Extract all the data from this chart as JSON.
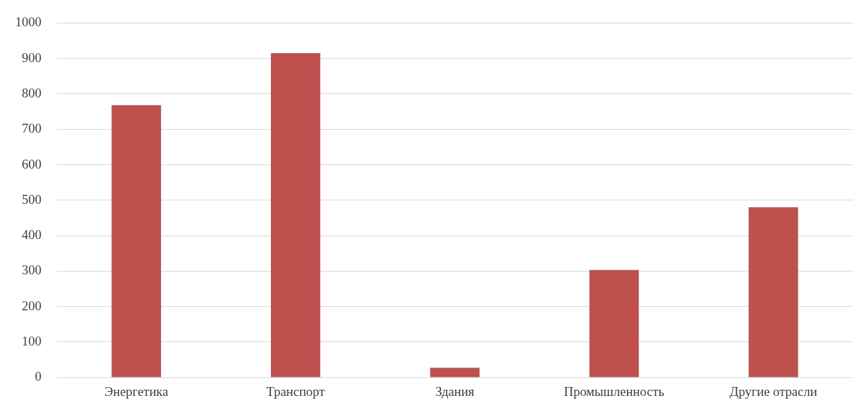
{
  "chart_data": {
    "type": "bar",
    "categories": [
      "Энергетика",
      "Транспорт",
      "Здания",
      "Промышленность",
      "Другие отрасли"
    ],
    "values": [
      768,
      915,
      27,
      303,
      480
    ],
    "color": "#c0504d",
    "ylim": [
      0,
      1000
    ],
    "yticks": [
      0,
      100,
      200,
      300,
      400,
      500,
      600,
      700,
      800,
      900,
      1000
    ],
    "grid": "y"
  }
}
